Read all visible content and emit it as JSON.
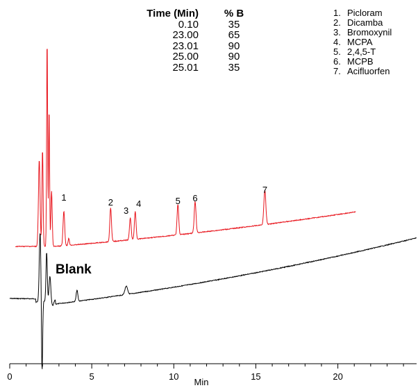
{
  "gradient_table": {
    "headers": [
      "Time (Min)",
      "% B"
    ],
    "rows": [
      [
        "0.10",
        "35"
      ],
      [
        "23.00",
        "65"
      ],
      [
        "23.01",
        "90"
      ],
      [
        "25.00",
        "90"
      ],
      [
        "25.01",
        "35"
      ]
    ]
  },
  "legend": [
    {
      "num": "1.",
      "name": "Picloram"
    },
    {
      "num": "2.",
      "name": "Dicamba"
    },
    {
      "num": "3.",
      "name": "Bromoxynil"
    },
    {
      "num": "4.",
      "name": "MCPA"
    },
    {
      "num": "5.",
      "name": "2,4,5-T"
    },
    {
      "num": "6.",
      "name": "MCPB"
    },
    {
      "num": "7.",
      "name": "Acifluorfen"
    }
  ],
  "blank_label": "Blank",
  "chart_data": {
    "type": "line",
    "xlabel": "Min",
    "ylabel": "",
    "xlim": [
      0,
      24.8
    ],
    "x_ticks": [
      0,
      5,
      10,
      15,
      20
    ],
    "grid": false,
    "series": [
      {
        "name": "",
        "color": "#e8141c",
        "peaks": [
          {
            "label": "1",
            "time": 3.3
          },
          {
            "label": "2",
            "time": 6.15
          },
          {
            "label": "3",
            "time": 7.35
          },
          {
            "label": "4",
            "time": 7.65
          },
          {
            "label": "5",
            "time": 10.25
          },
          {
            "label": "6",
            "time": 11.3
          },
          {
            "label": "7",
            "time": 15.55
          }
        ]
      },
      {
        "name": "Blank",
        "color": "#000000",
        "peaks": [
          {
            "label": "",
            "time": 4.1
          },
          {
            "label": "",
            "time": 7.1
          }
        ]
      }
    ]
  }
}
